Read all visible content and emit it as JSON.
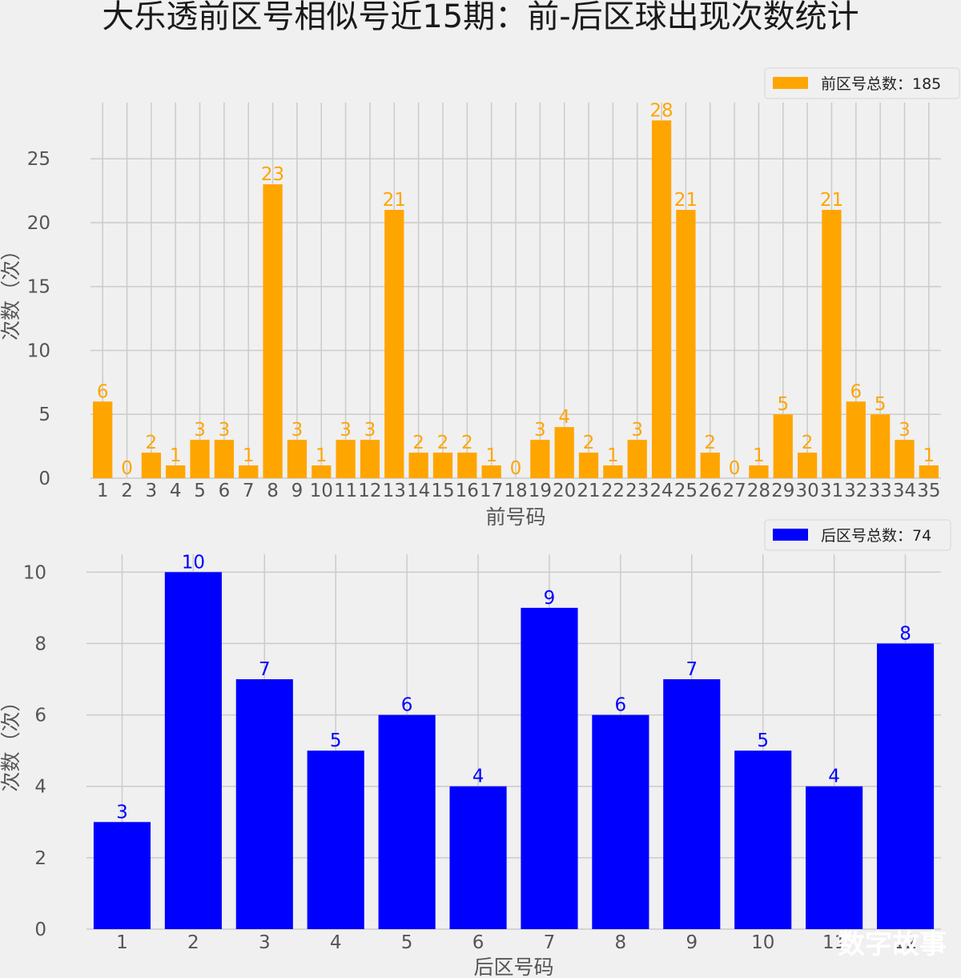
{
  "title": "大乐透前区号相似号近15期：前-后区球出现次数统计",
  "watermark": "数字故事",
  "chart_data": [
    {
      "type": "bar",
      "xlabel": "前号码",
      "ylabel": "次数（次）",
      "ylim": [
        0,
        29.4
      ],
      "yticks": [
        0,
        5,
        10,
        15,
        20,
        25
      ],
      "grid": true,
      "legend_position": "top-right",
      "color": "#FFA500",
      "series": [
        {
          "name": "前区号总数：185",
          "categories": [
            "1",
            "2",
            "3",
            "4",
            "5",
            "6",
            "7",
            "8",
            "9",
            "10",
            "11",
            "12",
            "13",
            "14",
            "15",
            "16",
            "17",
            "18",
            "19",
            "20",
            "21",
            "22",
            "23",
            "24",
            "25",
            "26",
            "27",
            "28",
            "29",
            "30",
            "31",
            "32",
            "33",
            "34",
            "35"
          ],
          "values": [
            6,
            0,
            2,
            1,
            3,
            3,
            1,
            23,
            3,
            1,
            3,
            3,
            21,
            2,
            2,
            2,
            1,
            0,
            3,
            4,
            2,
            1,
            3,
            28,
            21,
            2,
            0,
            1,
            5,
            2,
            21,
            6,
            5,
            3,
            1
          ]
        }
      ]
    },
    {
      "type": "bar",
      "xlabel": "后区号码",
      "ylabel": "次数（次）",
      "ylim": [
        0,
        10.5
      ],
      "yticks": [
        0,
        2,
        4,
        6,
        8,
        10
      ],
      "grid": true,
      "legend_position": "top-right",
      "color": "#0000FF",
      "series": [
        {
          "name": "后区号总数：74",
          "categories": [
            "1",
            "2",
            "3",
            "4",
            "5",
            "6",
            "7",
            "8",
            "9",
            "10",
            "11",
            "12"
          ],
          "values": [
            3,
            10,
            7,
            5,
            6,
            4,
            9,
            6,
            7,
            5,
            4,
            8
          ]
        }
      ]
    }
  ]
}
